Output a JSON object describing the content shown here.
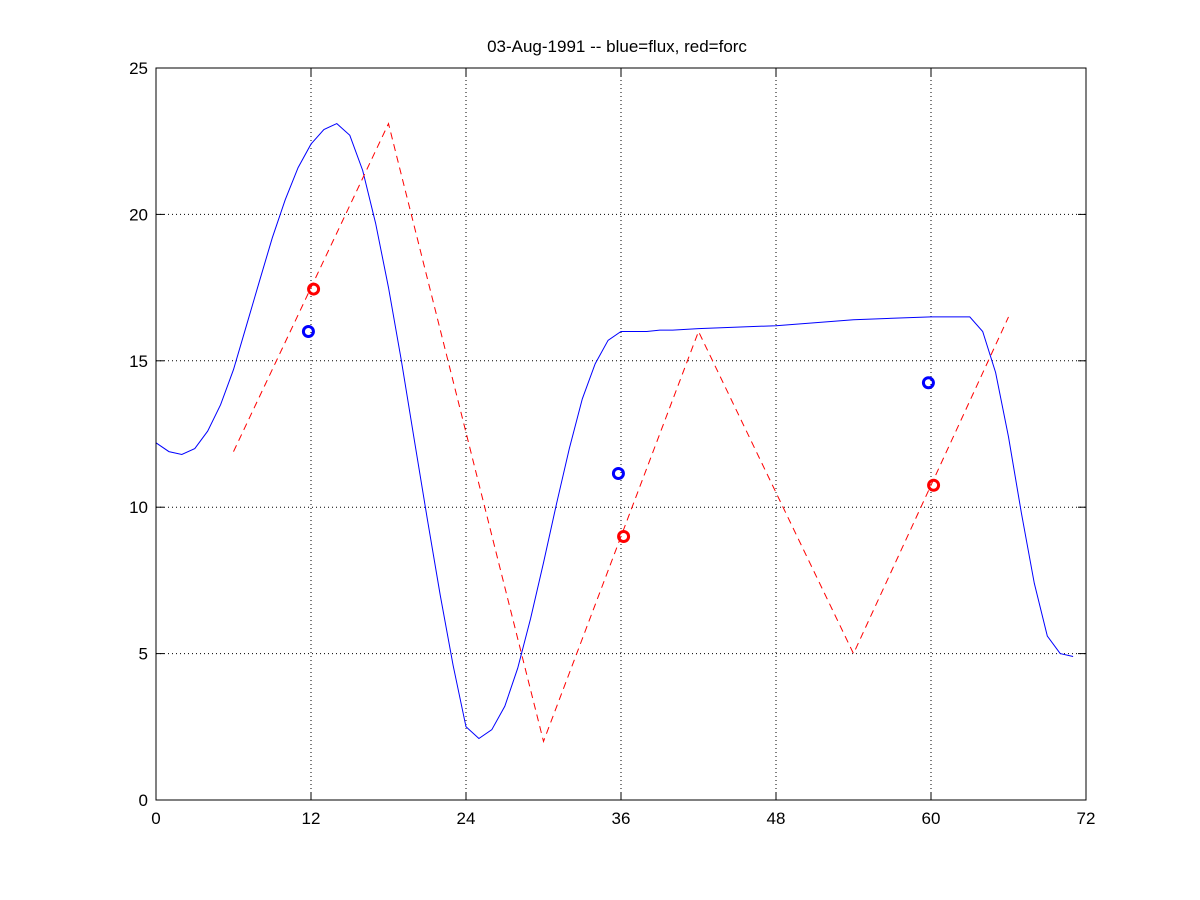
{
  "chart_data": {
    "type": "line",
    "title": "03-Aug-1991 -- blue=flux, red=forc",
    "xlabel": "",
    "ylabel": "",
    "xlim": [
      0,
      72
    ],
    "ylim": [
      0,
      25
    ],
    "xticks": [
      0,
      12,
      24,
      36,
      48,
      60,
      72
    ],
    "yticks": [
      0,
      5,
      10,
      15,
      20,
      25
    ],
    "grid": true,
    "series": [
      {
        "key": "flux",
        "style": "solid",
        "color": "#0000ff",
        "x": [
          0,
          1,
          2,
          3,
          4,
          5,
          6,
          7,
          8,
          9,
          10,
          11,
          12,
          13,
          14,
          15,
          16,
          17,
          18,
          19,
          20,
          21,
          22,
          23,
          24,
          25,
          26,
          27,
          28,
          29,
          30,
          31,
          32,
          33,
          34,
          35,
          36,
          37,
          38,
          39,
          40,
          42,
          45,
          48,
          51,
          54,
          57,
          60,
          63,
          64,
          65,
          66,
          67,
          68,
          69,
          70,
          71
        ],
        "y": [
          12.2,
          11.9,
          11.8,
          12.0,
          12.6,
          13.5,
          14.7,
          16.2,
          17.7,
          19.2,
          20.5,
          21.6,
          22.4,
          22.9,
          23.1,
          22.7,
          21.5,
          19.7,
          17.5,
          15.0,
          12.3,
          9.6,
          7.0,
          4.6,
          2.5,
          2.1,
          2.4,
          3.2,
          4.5,
          6.2,
          8.1,
          10.1,
          12.0,
          13.7,
          14.9,
          15.7,
          16.0,
          16.0,
          16.0,
          16.05,
          16.05,
          16.1,
          16.15,
          16.2,
          16.3,
          16.4,
          16.45,
          16.5,
          16.5,
          16.0,
          14.6,
          12.4,
          9.8,
          7.4,
          5.6,
          5.0,
          4.9
        ]
      },
      {
        "key": "forc",
        "style": "dashed",
        "color": "#ff0000",
        "x": [
          6,
          18,
          30,
          42,
          54,
          66
        ],
        "y": [
          11.9,
          23.1,
          2.0,
          16.0,
          5.0,
          16.5
        ]
      }
    ],
    "markers": [
      {
        "color": "#0000ff",
        "x": 11.8,
        "y": 16.0
      },
      {
        "color": "#ff0000",
        "x": 12.2,
        "y": 17.45
      },
      {
        "color": "#0000ff",
        "x": 35.8,
        "y": 11.15
      },
      {
        "color": "#ff0000",
        "x": 36.2,
        "y": 9.0
      },
      {
        "color": "#0000ff",
        "x": 59.8,
        "y": 14.25
      },
      {
        "color": "#ff0000",
        "x": 60.2,
        "y": 10.75
      }
    ]
  }
}
